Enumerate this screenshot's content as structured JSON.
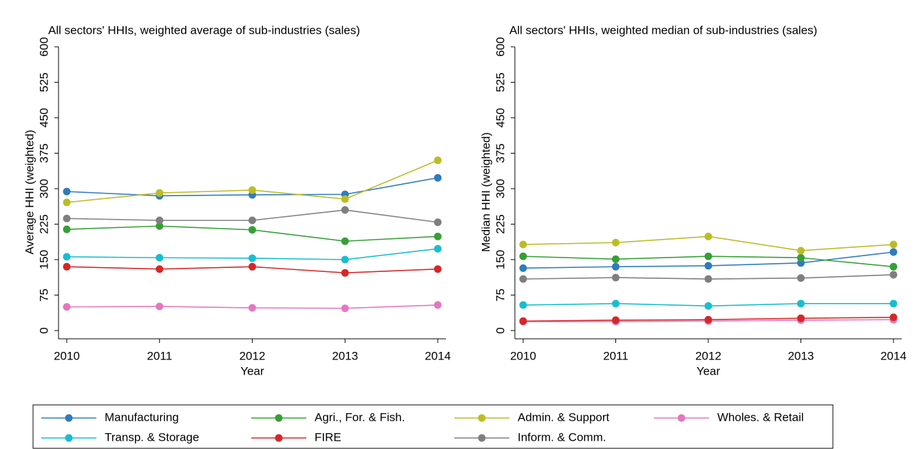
{
  "chart_data": [
    {
      "type": "line",
      "title": "All sectors' HHIs, weighted average of sub-industries (sales)",
      "x_label": "Year",
      "y_label": "Average HHI (weighted)",
      "x": [
        2010,
        2011,
        2012,
        2013,
        2014
      ],
      "xlim": [
        2010,
        2014
      ],
      "xticks": [
        2010,
        2011,
        2012,
        2013,
        2014
      ],
      "ylim": [
        0,
        600
      ],
      "yticks": [
        0,
        75,
        150,
        225,
        300,
        375,
        450,
        525,
        600
      ],
      "series": [
        {
          "name": "Manufacturing",
          "color": "#2f7bbf",
          "values": [
            294,
            285,
            287,
            288,
            323
          ]
        },
        {
          "name": "Agri., For. & Fish.",
          "color": "#35a035",
          "values": [
            214,
            221,
            213,
            189,
            199
          ]
        },
        {
          "name": "Admin. & Support",
          "color": "#bcbc26",
          "values": [
            271,
            291,
            297,
            278,
            360
          ]
        },
        {
          "name": "Wholes. & Retail",
          "color": "#e377c2",
          "values": [
            50,
            51,
            48,
            47,
            54
          ]
        },
        {
          "name": "Transp. & Storage",
          "color": "#17becf",
          "values": [
            156,
            154,
            153,
            150,
            173
          ]
        },
        {
          "name": "FIRE",
          "color": "#d62728",
          "values": [
            135,
            130,
            135,
            122,
            130
          ]
        },
        {
          "name": "Inform. & Comm.",
          "color": "#7f7f7f",
          "values": [
            237,
            233,
            233,
            255,
            229
          ]
        }
      ]
    },
    {
      "type": "line",
      "title": "All sectors' HHIs, weighted median of sub-industries (sales)",
      "x_label": "Year",
      "y_label": "Median HHI (weighted)",
      "x": [
        2010,
        2011,
        2012,
        2013,
        2014
      ],
      "xlim": [
        2010,
        2014
      ],
      "xticks": [
        2010,
        2011,
        2012,
        2013,
        2014
      ],
      "ylim": [
        0,
        600
      ],
      "yticks": [
        0,
        75,
        150,
        225,
        300,
        375,
        450,
        525,
        600
      ],
      "series": [
        {
          "color": "#2f7bbf",
          "values": [
            132,
            135,
            137,
            143,
            166
          ]
        },
        {
          "color": "#35a035",
          "values": [
            157,
            151,
            157,
            154,
            135
          ]
        },
        {
          "color": "#bcbc26",
          "values": [
            182,
            186,
            199,
            169,
            182
          ]
        },
        {
          "color": "#e377c2",
          "values": [
            19,
            19,
            20,
            22,
            23
          ]
        },
        {
          "color": "#17becf",
          "values": [
            54,
            57,
            52,
            57,
            57
          ]
        },
        {
          "color": "#d62728",
          "values": [
            20,
            22,
            23,
            26,
            28
          ]
        },
        {
          "color": "#7f7f7f",
          "values": [
            109,
            112,
            109,
            111,
            118
          ]
        }
      ]
    }
  ]
}
